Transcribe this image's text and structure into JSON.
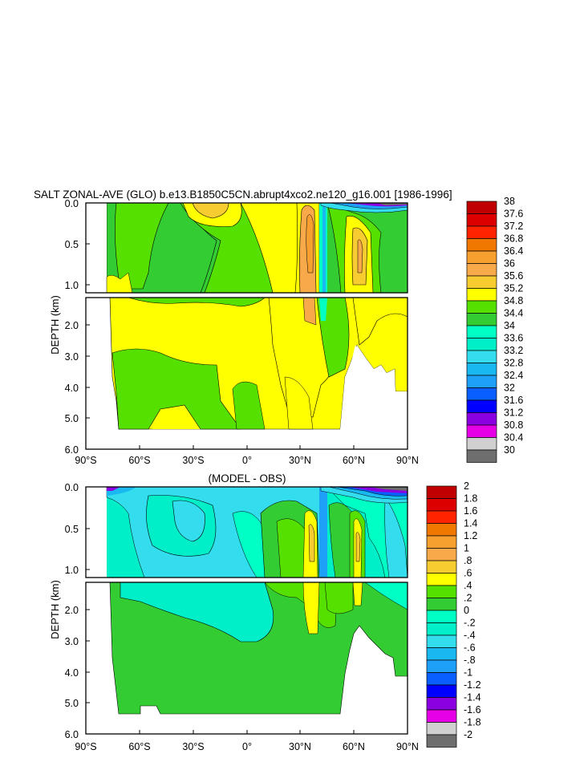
{
  "chart_data": [
    {
      "type": "heatmap",
      "title": "SALT ZONAL-AVE (GLO) b.e13.B1850C5CN.abrupt4xco2.ne120_g16.001 [1986-1996]",
      "ylabel": "DEPTH (km)",
      "x_ticks": [
        "90°S",
        "60°S",
        "30°S",
        "0°",
        "30°N",
        "60°N",
        "90°N"
      ],
      "y_ticks_upper": [
        "0.0",
        "0.5",
        "1.0"
      ],
      "y_ticks_lower": [
        "2.0",
        "3.0",
        "4.0",
        "5.0",
        "6.0"
      ],
      "xlim": [
        -90,
        90
      ],
      "ylim_km": [
        0,
        6
      ],
      "colorbar": {
        "labels": [
          "38",
          "37.6",
          "37.2",
          "36.8",
          "36.4",
          "36",
          "35.6",
          "35.2",
          "34.8",
          "34.4",
          "34",
          "33.6",
          "33.2",
          "32.8",
          "32.4",
          "32",
          "31.6",
          "31.2",
          "30.8",
          "30.4",
          "30"
        ],
        "colors": [
          "#c00000",
          "#dd0000",
          "#ff2400",
          "#f07800",
          "#f7a030",
          "#f8aa4a",
          "#f7cc30",
          "#ffff00",
          "#55e000",
          "#33cc33",
          "#00ffc4",
          "#00eec8",
          "#33ddee",
          "#19b8f0",
          "#1ea0f8",
          "#0a60ff",
          "#0000ff",
          "#8a00e0",
          "#e600e6",
          "#d0d0d0",
          "#6e6e6e"
        ]
      }
    },
    {
      "type": "heatmap",
      "title": "(MODEL - OBS)",
      "ylabel": "DEPTH (km)",
      "x_ticks": [
        "90°S",
        "60°S",
        "30°S",
        "0°",
        "30°N",
        "60°N",
        "90°N"
      ],
      "y_ticks_upper": [
        "0.0",
        "0.5",
        "1.0"
      ],
      "y_ticks_lower": [
        "2.0",
        "3.0",
        "4.0",
        "5.0",
        "6.0"
      ],
      "xlim": [
        -90,
        90
      ],
      "ylim_km": [
        0,
        6
      ],
      "colorbar": {
        "labels": [
          "2",
          "1.8",
          "1.6",
          "1.4",
          "1.2",
          "1",
          ".8",
          ".6",
          ".4",
          ".2",
          "0",
          "-.2",
          "-.4",
          "-.6",
          "-.8",
          "-1",
          "-1.2",
          "-1.4",
          "-1.6",
          "-1.8",
          "-2"
        ],
        "colors": [
          "#c00000",
          "#dd0000",
          "#ff2400",
          "#f07800",
          "#f7a030",
          "#f8aa4a",
          "#f7cc30",
          "#ffff00",
          "#55e000",
          "#33cc33",
          "#00ffc4",
          "#00eec8",
          "#33ddee",
          "#19b8f0",
          "#1ea0f8",
          "#0a60ff",
          "#0000ff",
          "#8a00e0",
          "#e600e6",
          "#d0d0d0",
          "#6e6e6e"
        ]
      }
    }
  ]
}
